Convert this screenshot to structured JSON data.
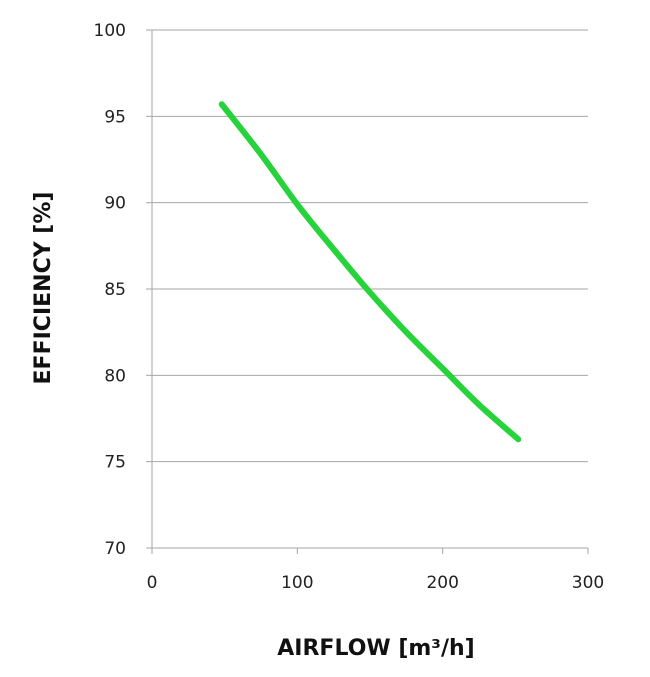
{
  "chart_data": {
    "type": "line",
    "xlabel": "AIRFLOW [m³/h]",
    "ylabel": "EFFICIENCY [%]",
    "xlim": [
      0,
      300
    ],
    "ylim": [
      70,
      100
    ],
    "xticks": [
      0,
      100,
      200,
      300
    ],
    "yticks": [
      70,
      75,
      80,
      85,
      90,
      95,
      100
    ],
    "grid": "horizontal",
    "colors": {
      "series": "#27d33b",
      "grid": "#a6a6a6",
      "text": "#222222"
    },
    "series": [
      {
        "x": [
          48,
          75,
          100,
          125,
          150,
          175,
          200,
          225,
          252
        ],
        "y": [
          95.7,
          92.8,
          89.9,
          87.3,
          84.8,
          82.5,
          80.4,
          78.3,
          76.3
        ]
      }
    ]
  }
}
